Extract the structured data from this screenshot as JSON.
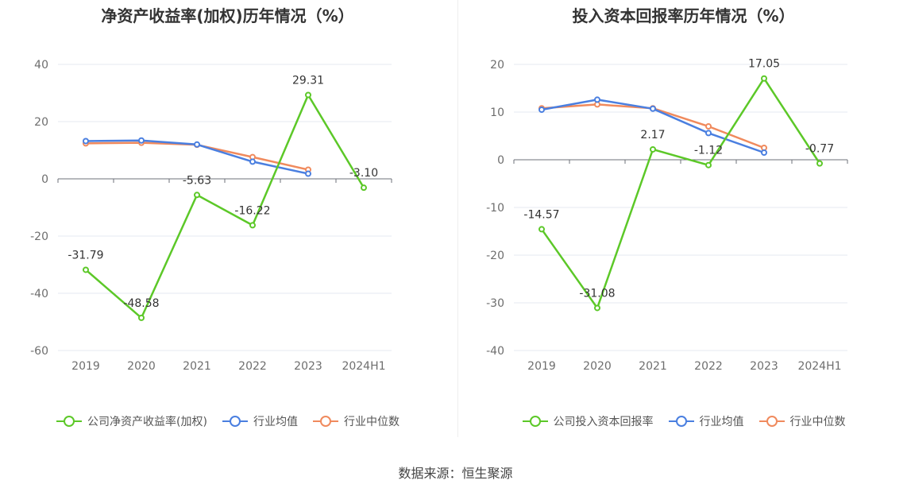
{
  "colors": {
    "company": "#5cc828",
    "industry_avg": "#4a7fe0",
    "industry_median": "#f08a5d"
  },
  "source_text": "数据来源：恒生聚源",
  "chart_data": [
    {
      "type": "line",
      "title": "净资产收益率(加权)历年情况（%）",
      "categories": [
        "2019",
        "2020",
        "2021",
        "2022",
        "2023",
        "2024H1"
      ],
      "ylim": [
        -60,
        40
      ],
      "yticks": [
        40,
        20,
        0,
        -20,
        -40,
        -60
      ],
      "grid": true,
      "legend_position": "bottom",
      "series": [
        {
          "name": "公司净资产收益率(加权)",
          "key": "company",
          "values": [
            -31.79,
            -48.58,
            -5.63,
            -16.22,
            29.31,
            -3.1
          ],
          "labels": [
            "-31.79",
            "-48.58",
            "-5.63",
            "-16.22",
            "29.31",
            "-3.10"
          ]
        },
        {
          "name": "行业均值",
          "key": "industry_avg",
          "values": [
            13.2,
            13.4,
            12.0,
            6.0,
            1.8,
            null
          ]
        },
        {
          "name": "行业中位数",
          "key": "industry_median",
          "values": [
            12.4,
            12.6,
            11.9,
            7.6,
            3.2,
            null
          ]
        }
      ]
    },
    {
      "type": "line",
      "title": "投入资本回报率历年情况（%）",
      "categories": [
        "2019",
        "2020",
        "2021",
        "2022",
        "2023",
        "2024H1"
      ],
      "ylim": [
        -40,
        20
      ],
      "yticks": [
        20,
        10,
        0,
        -10,
        -20,
        -30,
        -40
      ],
      "grid": true,
      "legend_position": "bottom",
      "series": [
        {
          "name": "公司投入资本回报率",
          "key": "company",
          "values": [
            -14.57,
            -31.08,
            2.17,
            -1.12,
            17.05,
            -0.77
          ],
          "labels": [
            "-14.57",
            "-31.08",
            "2.17",
            "-1.12",
            "17.05",
            "-0.77"
          ]
        },
        {
          "name": "行业均值",
          "key": "industry_avg",
          "values": [
            10.5,
            12.6,
            10.7,
            5.6,
            1.5,
            null
          ]
        },
        {
          "name": "行业中位数",
          "key": "industry_median",
          "values": [
            10.8,
            11.6,
            10.8,
            7.0,
            2.5,
            null
          ]
        }
      ]
    }
  ]
}
